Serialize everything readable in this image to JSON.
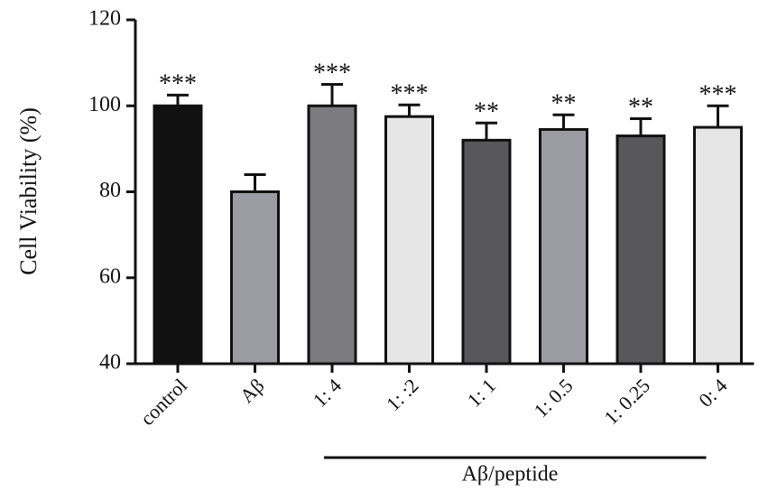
{
  "chart_data": {
    "type": "bar",
    "y_label": "Cell Viability (%)",
    "group_label": "Aβ/peptide",
    "group_categories": [
      2,
      7
    ],
    "categories": [
      "control",
      "Aβ",
      "1: 4",
      "1: :2",
      "1: 1",
      "1: 0.5",
      "1: 0.25",
      "0: 4"
    ],
    "values": [
      100,
      80,
      100,
      97.5,
      92,
      94.5,
      93,
      95
    ],
    "errors": [
      2.5,
      4,
      5,
      2.7,
      4,
      3.4,
      4,
      5
    ],
    "significance": [
      "***",
      null,
      "***",
      "***",
      "**",
      "**",
      "**",
      "***"
    ],
    "colors": [
      "#111111",
      "#9b9ba3",
      "#7b7b7f",
      "#e6e6e6",
      "#58585a",
      "#9b9ba3",
      "#58585a",
      "#e6e6e6"
    ],
    "ylim": [
      40,
      120
    ],
    "yticks": [
      40,
      60,
      80,
      100,
      120
    ],
    "grid": false
  }
}
